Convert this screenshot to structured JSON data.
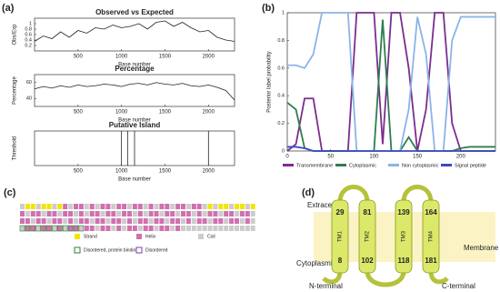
{
  "panel_labels": [
    "(a)",
    "(b)",
    "(c)",
    "(d)"
  ],
  "chart_data": [
    {
      "type": "line",
      "title": "Observed vs Expected",
      "xlabel": "Base number",
      "ylabel": "Obs/Exp",
      "color": "#222222",
      "x": [
        0,
        100,
        200,
        300,
        400,
        500,
        600,
        700,
        800,
        900,
        1000,
        1100,
        1200,
        1300,
        1400,
        1500,
        1600,
        1700,
        1800,
        1900,
        2000,
        2100,
        2200,
        2300
      ],
      "values": [
        0.35,
        0.55,
        0.45,
        0.7,
        0.5,
        0.75,
        0.65,
        0.85,
        0.8,
        0.95,
        0.85,
        0.9,
        1.0,
        0.8,
        1.05,
        1.1,
        0.9,
        1.05,
        0.85,
        0.7,
        0.75,
        0.5,
        0.4,
        0.35
      ],
      "xlim": [
        0,
        2300
      ],
      "ylim": [
        0,
        1.2
      ],
      "xticks": [
        500,
        1000,
        1500,
        2000
      ],
      "yticks": [
        0.2,
        0.4,
        0.6,
        0.8,
        1
      ]
    },
    {
      "type": "line",
      "title": "Percentage",
      "xlabel": "Base number",
      "ylabel": "Percentage",
      "color": "#222222",
      "x": [
        0,
        100,
        200,
        300,
        400,
        500,
        600,
        700,
        800,
        900,
        1000,
        1100,
        1200,
        1300,
        1400,
        1500,
        1600,
        1700,
        1800,
        1900,
        2000,
        2100,
        2200,
        2300
      ],
      "values": [
        52,
        55,
        53,
        56,
        54,
        57,
        55,
        56,
        58,
        57,
        55,
        58,
        59,
        57,
        60,
        58,
        57,
        59,
        56,
        55,
        57,
        54,
        50,
        38
      ],
      "xlim": [
        0,
        2300
      ],
      "ylim": [
        30,
        70
      ],
      "xticks": [
        500,
        1000,
        1500,
        2000
      ],
      "yticks": [
        40,
        60
      ]
    },
    {
      "type": "bar",
      "title": "Putative Island",
      "xlabel": "Base number",
      "ylabel": "Threshold",
      "color": "#222222",
      "x": [
        1000,
        1070,
        1150,
        2000
      ],
      "values": [
        1,
        1,
        1,
        1
      ],
      "xlim": [
        0,
        2300
      ],
      "ylim": [
        0,
        1
      ],
      "xticks": [
        500,
        1000,
        1500,
        2000
      ],
      "yticks": []
    },
    {
      "type": "line",
      "ylabel": "Posterior label probability",
      "x": [
        0,
        10,
        20,
        30,
        40,
        50,
        60,
        70,
        80,
        90,
        100,
        110,
        120,
        130,
        140,
        150,
        160,
        170,
        180,
        190,
        200,
        210,
        220,
        230,
        240
      ],
      "series": [
        {
          "name": "Transmembrane",
          "color": "#7b2d8e",
          "values": [
            0,
            0.05,
            0.38,
            0.38,
            0,
            0,
            0,
            0,
            1,
            1,
            1,
            0.05,
            1,
            1,
            0.6,
            0,
            0.3,
            1,
            1,
            0.2,
            0,
            0,
            0,
            0,
            0
          ]
        },
        {
          "name": "Cytoplasmic",
          "color": "#2e7d4f",
          "values": [
            0.35,
            0.3,
            0.02,
            0,
            0,
            0,
            0,
            0,
            0,
            0,
            0,
            0.95,
            0,
            0,
            0.1,
            0,
            0,
            0,
            0,
            0,
            0.02,
            0.03,
            0.03,
            0.03,
            0.03
          ]
        },
        {
          "name": "Non cytoplasmic",
          "color": "#8ab4e8",
          "values": [
            0.62,
            0.62,
            0.6,
            0.7,
            1,
            1,
            1,
            1,
            0,
            0,
            0,
            0,
            0,
            0,
            0.3,
            0.97,
            0.7,
            0,
            0,
            0.8,
            0.97,
            0.97,
            0.97,
            0.97,
            0.97
          ]
        },
        {
          "name": "Signal peptide",
          "color": "#3b4cc0",
          "values": [
            0.03,
            0.03,
            0.02,
            0,
            0,
            0,
            0,
            0,
            0,
            0,
            0,
            0,
            0,
            0,
            0,
            0,
            0,
            0,
            0,
            0,
            0,
            0,
            0,
            0,
            0
          ]
        }
      ],
      "xlim": [
        0,
        240
      ],
      "ylim": [
        0,
        1
      ],
      "xticks": [
        0,
        50,
        100,
        150,
        200
      ],
      "yticks": [
        0,
        0.2,
        0.4,
        0.6,
        0.8,
        1
      ]
    }
  ],
  "panel_c": {
    "legend": [
      {
        "label": "Strand",
        "color": "#f2e600"
      },
      {
        "label": "Helix",
        "color": "#d070b0"
      },
      {
        "label": "Coil",
        "color": "#cccccc"
      },
      {
        "label": "Disordered, protein binding",
        "color": "#2e7d32"
      },
      {
        "label": "Disordered",
        "color": "#7b3fa0"
      }
    ]
  },
  "panel_d": {
    "extracellular": "Extracellular",
    "cytoplasmic": "Cytoplasmic",
    "membrane": "Membrane",
    "n_terminal": "N-terminal",
    "c_terminal": "C-terminal",
    "helices": [
      {
        "name": "TM1",
        "top": 29,
        "bottom": 8
      },
      {
        "name": "TM2",
        "top": 81,
        "bottom": 102
      },
      {
        "name": "TM3",
        "top": 139,
        "bottom": 118
      },
      {
        "name": "TM4",
        "top": 164,
        "bottom": 181
      }
    ]
  }
}
